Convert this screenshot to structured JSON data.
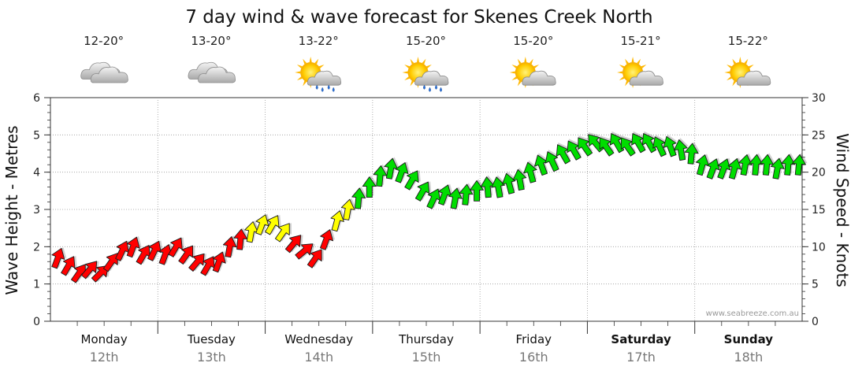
{
  "title": "7 day wind & wave forecast for Skenes Creek North",
  "watermark": "www.seabreeze.com.au",
  "colors": {
    "strong": "#ff0000",
    "moderate": "#ffff00",
    "light": "#00dd00"
  },
  "days": [
    {
      "name": "Monday",
      "date": "12th",
      "temp": "12-20°",
      "weather_icon": "cloudy-icon",
      "bold": false
    },
    {
      "name": "Tuesday",
      "date": "13th",
      "temp": "13-20°",
      "weather_icon": "cloudy-icon",
      "bold": false
    },
    {
      "name": "Wednesday",
      "date": "14th",
      "temp": "13-22°",
      "weather_icon": "sun-cloud-rain-icon",
      "bold": false
    },
    {
      "name": "Thursday",
      "date": "15th",
      "temp": "15-20°",
      "weather_icon": "sun-cloud-rain-icon",
      "bold": false
    },
    {
      "name": "Friday",
      "date": "16th",
      "temp": "15-20°",
      "weather_icon": "sun-cloud-icon",
      "bold": false
    },
    {
      "name": "Saturday",
      "date": "17th",
      "temp": "15-21°",
      "weather_icon": "sun-cloud-icon",
      "bold": true
    },
    {
      "name": "Sunday",
      "date": "18th",
      "temp": "15-22°",
      "weather_icon": "sun-cloud-icon",
      "bold": true
    }
  ],
  "chart_data": {
    "type": "line",
    "title": "7 day wind & wave forecast for Skenes Creek North",
    "ylabel_left": "Wave Height - Metres",
    "ylabel_right": "Wind Speed - Knots",
    "ylim_left": [
      0,
      6
    ],
    "ylim_right": [
      0,
      30
    ],
    "yticks_left": [
      "0",
      "1",
      "2",
      "3",
      "4",
      "5",
      "6"
    ],
    "yticks_right": [
      "0",
      "5",
      "10",
      "15",
      "20",
      "25",
      "30"
    ],
    "grid": true,
    "days": [
      "Monday",
      "Tuesday",
      "Wednesday",
      "Thursday",
      "Friday",
      "Saturday",
      "Sunday"
    ],
    "series": [
      {
        "name": "Wind Speed - Knots",
        "x_days": [
          0.0,
          0.1,
          0.2,
          0.3,
          0.4,
          0.5,
          0.6,
          0.7,
          0.8,
          0.9,
          1.0,
          1.1,
          1.2,
          1.3,
          1.4,
          1.5,
          1.6,
          1.7,
          1.8,
          1.9,
          2.0,
          2.1,
          2.2,
          2.3,
          2.4,
          2.5,
          2.6,
          2.7,
          2.8,
          2.9,
          3.0,
          3.1,
          3.2,
          3.3,
          3.4,
          3.5,
          3.6,
          3.7,
          3.8,
          3.9,
          4.0,
          4.1,
          4.2,
          4.3,
          4.4,
          4.5,
          4.6,
          4.7,
          4.8,
          4.9,
          5.0,
          5.1,
          5.2,
          5.3,
          5.4,
          5.5,
          5.6,
          5.7,
          5.8,
          5.9,
          6.0,
          6.1,
          6.2,
          6.3,
          6.4,
          6.5,
          6.6,
          6.7,
          6.8,
          6.9
        ],
        "values": [
          8.5,
          7.5,
          6.5,
          7.0,
          6.5,
          8.0,
          9.5,
          10.0,
          9.0,
          9.5,
          9.0,
          10.0,
          9.0,
          8.0,
          7.5,
          8.0,
          10.0,
          11.0,
          12.0,
          13.0,
          13.0,
          12.0,
          10.5,
          9.5,
          8.5,
          11.0,
          13.5,
          15.0,
          16.5,
          18.0,
          19.5,
          20.5,
          20.0,
          19.0,
          17.5,
          16.5,
          17.0,
          16.5,
          17.0,
          17.5,
          18.0,
          18.0,
          18.5,
          19.0,
          20.0,
          21.0,
          21.5,
          22.5,
          23.0,
          23.5,
          24.0,
          23.5,
          24.0,
          23.5,
          24.0,
          24.0,
          23.5,
          23.5,
          23.0,
          22.5,
          21.0,
          20.5,
          20.5,
          20.5,
          21.0,
          21.0,
          21.0,
          20.5,
          21.0,
          21.0
        ],
        "directions_deg": [
          110,
          120,
          125,
          130,
          135,
          125,
          115,
          110,
          120,
          115,
          110,
          120,
          125,
          130,
          120,
          110,
          100,
          95,
          100,
          110,
          120,
          125,
          130,
          140,
          125,
          110,
          105,
          100,
          95,
          90,
          95,
          100,
          110,
          120,
          120,
          115,
          110,
          100,
          95,
          90,
          85,
          80,
          75,
          80,
          75,
          70,
          65,
          60,
          60,
          55,
          50,
          55,
          60,
          55,
          60,
          60,
          65,
          70,
          80,
          95,
          105,
          110,
          110,
          105,
          100,
          95,
          95,
          100,
          95,
          95
        ]
      }
    ]
  }
}
